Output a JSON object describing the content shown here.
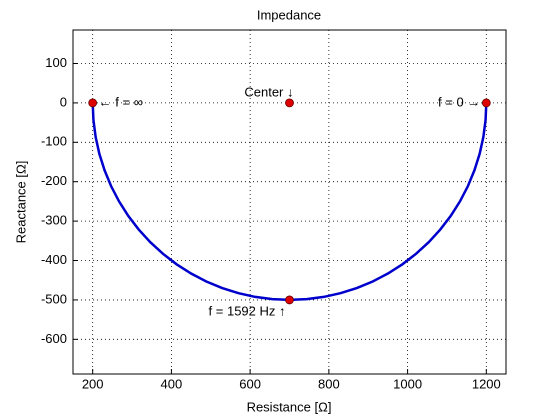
{
  "chart_data": {
    "type": "line",
    "title": "Impedance",
    "x_label": "Resistance  [Ω]",
    "y_label": "Reactance  [Ω]",
    "xlim": [
      150,
      1250
    ],
    "ylim": [
      -688,
      185
    ],
    "xticks": [
      200,
      400,
      600,
      800,
      1000,
      1200
    ],
    "yticks": [
      100,
      0,
      -100,
      -200,
      -300,
      -400,
      -500,
      -600
    ],
    "grid": true,
    "series": [
      {
        "color": "#0000cc",
        "x": [
          1200,
          1198.1,
          1192.4,
          1183.0,
          1169.8,
          1153.2,
          1133.0,
          1109.6,
          1083.0,
          1053.6,
          1021.4,
          986.8,
          950,
          911.3,
          871.0,
          829.4,
          786.8,
          743.6,
          700,
          656.4,
          613.2,
          570.6,
          529.0,
          488.7,
          450,
          413.2,
          378.6,
          346.4,
          317.0,
          290.4,
          267.0,
          246.8,
          230.2,
          217.0,
          207.6,
          201.9,
          200
        ],
        "y": [
          0,
          -43.6,
          -86.8,
          -129.4,
          -171.0,
          -211.3,
          -250,
          -286.8,
          -321.4,
          -353.6,
          -383.0,
          -409.6,
          -433.0,
          -453.2,
          -469.8,
          -483.0,
          -492.4,
          -498.1,
          -500,
          -498.1,
          -492.4,
          -483.0,
          -469.8,
          -453.2,
          -433.0,
          -409.6,
          -383.0,
          -353.6,
          -321.4,
          -286.8,
          -250,
          -211.3,
          -171.0,
          -129.4,
          -86.8,
          -43.6,
          0
        ]
      },
      {
        "color": "#dd0000",
        "x": [
          200,
          700,
          1200,
          700
        ],
        "y": [
          0,
          0,
          0,
          -500
        ],
        "labels": [
          "← f = ∞",
          "Center ↓",
          "f = 0 →",
          "f = 1592 Hz ↑"
        ]
      }
    ]
  }
}
